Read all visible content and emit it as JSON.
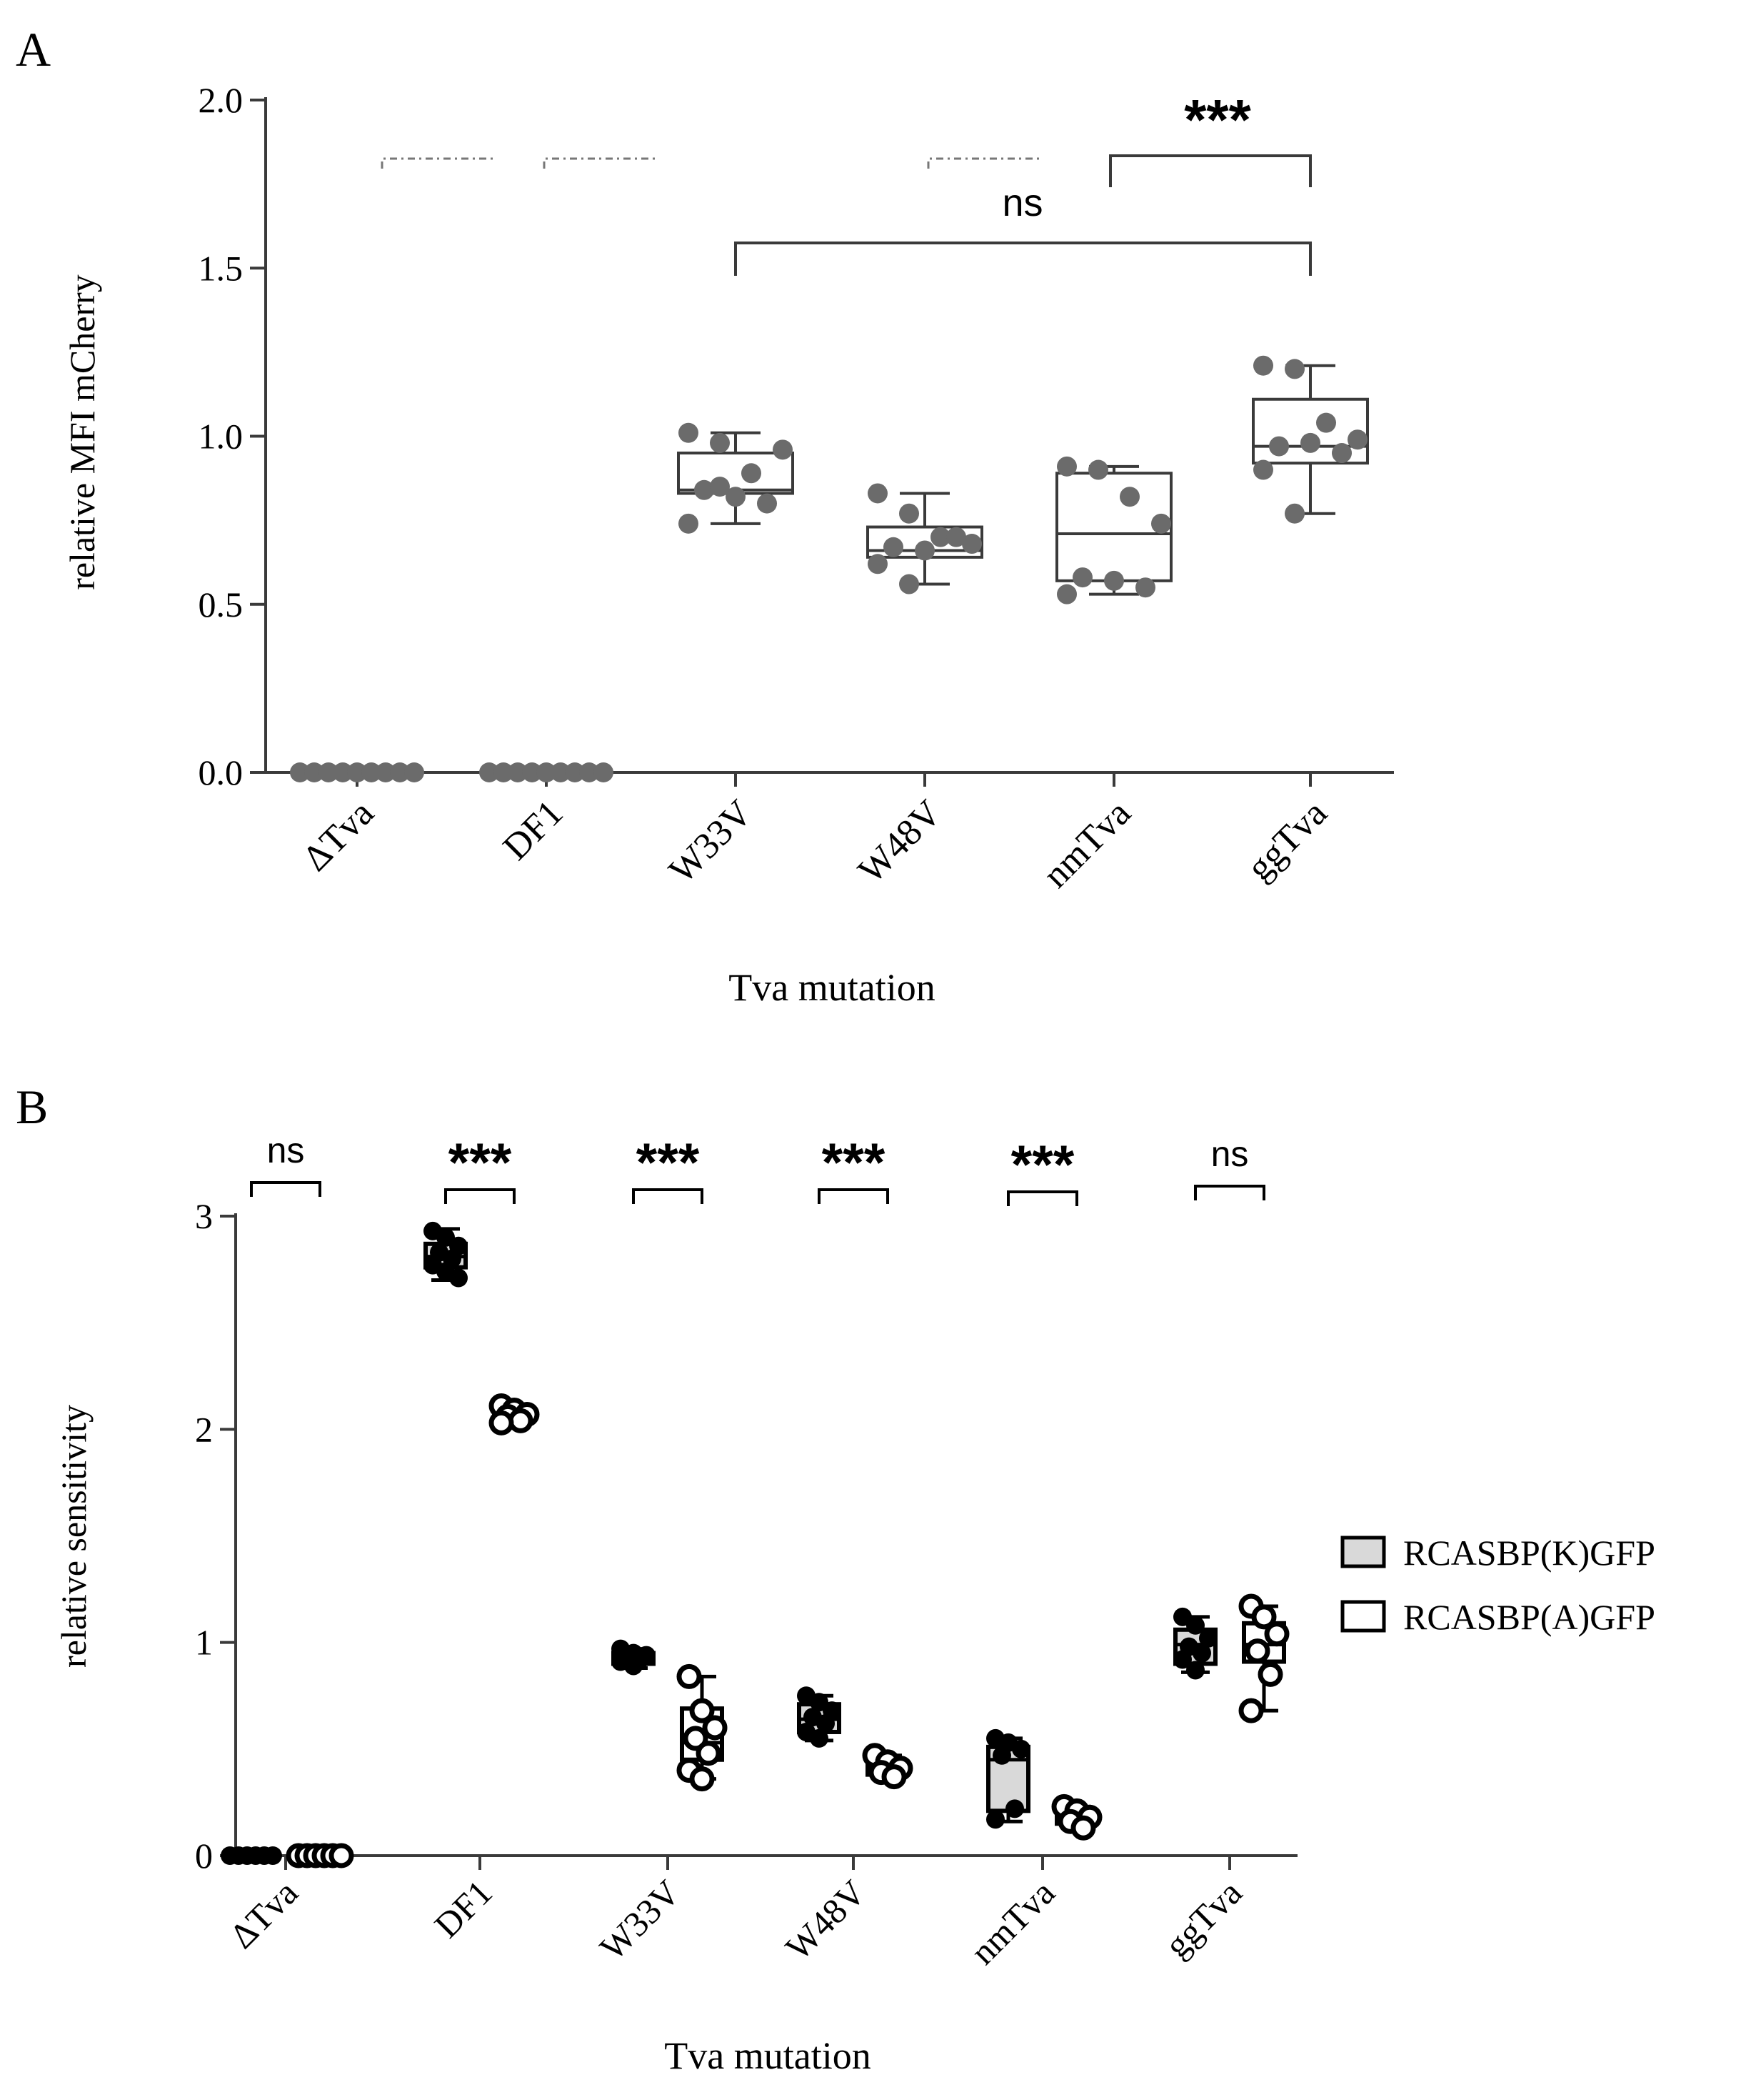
{
  "colors": {
    "axis": "#3a3a3a",
    "grey_point": "#6b6b6b",
    "k_fill": "#d9d9d9",
    "a_fill": "#ffffff",
    "black": "#000000"
  },
  "chart_data": [
    {
      "type": "box",
      "panel_label": "A",
      "xlabel": "Tva mutation",
      "ylabel": "relative MFI mCherry",
      "ylim": [
        0,
        2.0
      ],
      "yticks": [
        "0.0",
        "0.5",
        "1.0",
        "1.5",
        "2.0"
      ],
      "ytick_values": [
        0,
        0.5,
        1.0,
        1.5,
        2.0
      ],
      "categories": [
        "ΔTva",
        "DF1",
        "W33V",
        "W48V",
        "nmTva",
        "ggTva"
      ],
      "series": [
        {
          "name": "ΔTva",
          "box": null,
          "points": [
            0,
            0,
            0,
            0,
            0,
            0,
            0,
            0,
            0
          ]
        },
        {
          "name": "DF1",
          "box": null,
          "points": [
            0,
            0,
            0,
            0,
            0,
            0,
            0,
            0,
            0
          ]
        },
        {
          "name": "W33V",
          "box": {
            "min": 0.74,
            "q1": 0.83,
            "median": 0.84,
            "q3": 0.95,
            "max": 1.01
          },
          "points": [
            1.01,
            0.98,
            0.89,
            0.96,
            0.84,
            0.82,
            0.8,
            0.74,
            0.85
          ]
        },
        {
          "name": "W48V",
          "box": {
            "min": 0.56,
            "q1": 0.64,
            "median": 0.66,
            "q3": 0.73,
            "max": 0.83
          },
          "points": [
            0.83,
            0.77,
            0.7,
            0.68,
            0.67,
            0.66,
            0.7,
            0.62,
            0.56
          ]
        },
        {
          "name": "nmTva",
          "box": {
            "min": 0.53,
            "q1": 0.57,
            "median": 0.71,
            "q3": 0.89,
            "max": 0.91
          },
          "points": [
            0.91,
            0.9,
            0.82,
            0.74,
            0.58,
            0.57,
            0.55,
            0.53
          ]
        },
        {
          "name": "ggTva",
          "box": {
            "min": 0.77,
            "q1": 0.92,
            "median": 0.97,
            "q3": 1.11,
            "max": 1.21
          },
          "points": [
            1.21,
            1.2,
            1.04,
            0.99,
            0.97,
            0.98,
            0.95,
            0.9,
            0.77
          ]
        }
      ],
      "significance": [
        {
          "from": "W33V",
          "to": "ggTva",
          "label": "ns"
        },
        {
          "from": "nmTva",
          "to": "ggTva",
          "label": "***"
        }
      ]
    },
    {
      "type": "box",
      "panel_label": "B",
      "xlabel": "Tva mutation",
      "ylabel": "relative sensitivity",
      "ylim": [
        0,
        3
      ],
      "yticks": [
        "0",
        "1",
        "2",
        "3"
      ],
      "ytick_values": [
        0,
        1,
        2,
        3
      ],
      "categories": [
        "ΔTva",
        "DF1",
        "W33V",
        "W48V",
        "nmTva",
        "ggTva"
      ],
      "legend": [
        "RCASBP(K)GFP",
        "RCASBP(A)GFP"
      ],
      "legend_position": "right",
      "series": [
        {
          "name": "RCASBP(K)GFP",
          "fill": "#d9d9d9",
          "boxes": [
            {
              "min": 0,
              "q1": 0,
              "median": 0,
              "q3": 0,
              "max": 0
            },
            {
              "min": 2.7,
              "q1": 2.76,
              "median": 2.81,
              "q3": 2.87,
              "max": 2.94
            },
            {
              "min": 0.88,
              "q1": 0.9,
              "median": 0.93,
              "q3": 0.95,
              "max": 0.97
            },
            {
              "min": 0.54,
              "q1": 0.58,
              "median": 0.64,
              "q3": 0.71,
              "max": 0.75
            },
            {
              "min": 0.16,
              "q1": 0.21,
              "median": 0.45,
              "q3": 0.51,
              "max": 0.55
            },
            {
              "min": 0.86,
              "q1": 0.9,
              "median": 0.99,
              "q3": 1.06,
              "max": 1.12
            }
          ],
          "points": [
            [
              0,
              0,
              0,
              0,
              0,
              0
            ],
            [
              2.93,
              2.9,
              2.86,
              2.83,
              2.8,
              2.77,
              2.74,
              2.71
            ],
            [
              0.97,
              0.95,
              0.94,
              0.93,
              0.92,
              0.91,
              0.89
            ],
            [
              0.75,
              0.72,
              0.68,
              0.65,
              0.62,
              0.58,
              0.55
            ],
            [
              0.55,
              0.53,
              0.5,
              0.47,
              0.22,
              0.17
            ],
            [
              1.12,
              1.08,
              1.02,
              0.98,
              0.95,
              0.92,
              0.87
            ]
          ]
        },
        {
          "name": "RCASBP(A)GFP",
          "fill": "#ffffff",
          "boxes": [
            {
              "min": 0,
              "q1": 0,
              "median": 0,
              "q3": 0,
              "max": 0
            },
            {
              "min": 2.03,
              "q1": 2.05,
              "median": 2.07,
              "q3": 2.09,
              "max": 2.11
            },
            {
              "min": 0.36,
              "q1": 0.45,
              "median": 0.53,
              "q3": 0.69,
              "max": 0.84
            },
            {
              "min": 0.37,
              "q1": 0.38,
              "median": 0.41,
              "q3": 0.44,
              "max": 0.47
            },
            {
              "min": 0.13,
              "q1": 0.15,
              "median": 0.18,
              "q3": 0.21,
              "max": 0.23
            },
            {
              "min": 0.68,
              "q1": 0.91,
              "median": 0.99,
              "q3": 1.09,
              "max": 1.17
            }
          ],
          "points": [
            [
              0,
              0,
              0,
              0,
              0,
              0
            ],
            [
              2.11,
              2.09,
              2.07,
              2.06,
              2.04,
              2.03
            ],
            [
              0.84,
              0.68,
              0.6,
              0.55,
              0.48,
              0.4,
              0.36
            ],
            [
              0.47,
              0.44,
              0.41,
              0.39,
              0.37
            ],
            [
              0.23,
              0.21,
              0.18,
              0.16,
              0.13
            ],
            [
              1.17,
              1.12,
              1.04,
              0.96,
              0.85,
              0.68
            ]
          ]
        }
      ],
      "significance": [
        {
          "category": "ΔTva",
          "label": "ns"
        },
        {
          "category": "DF1",
          "label": "***"
        },
        {
          "category": "W33V",
          "label": "***"
        },
        {
          "category": "W48V",
          "label": "***"
        },
        {
          "category": "nmTva",
          "label": "***"
        },
        {
          "category": "ggTva",
          "label": "ns"
        }
      ]
    }
  ]
}
